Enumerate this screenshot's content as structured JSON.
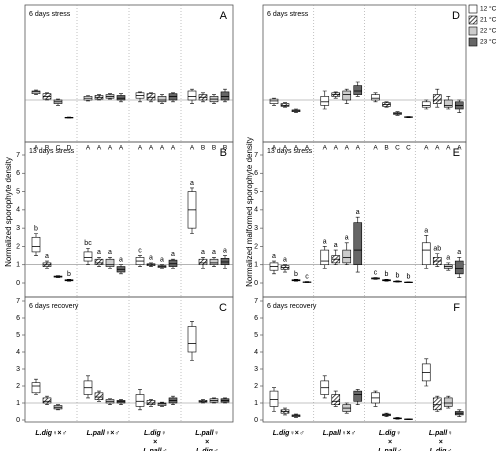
{
  "chart_data": [
    {
      "type": "box",
      "panel": "A",
      "annotation": "6 days stress",
      "ylim": [
        0,
        6
      ],
      "ref": 1,
      "series": [
        {
          "color": "#ffffff",
          "hatch": false,
          "values": [
            [
              1.3,
              1.35,
              1.45,
              1.5,
              1.55
            ],
            [
              0.95,
              1.0,
              1.1,
              1.2,
              1.25
            ],
            [
              0.9,
              1.1,
              1.25,
              1.4,
              1.45
            ],
            [
              0.8,
              1.0,
              1.2,
              1.5,
              1.6
            ]
          ]
        },
        {
          "color": "#ffffff",
          "hatch": true,
          "values": [
            [
              1.0,
              1.05,
              1.2,
              1.35,
              1.4
            ],
            [
              1.0,
              1.05,
              1.15,
              1.25,
              1.3
            ],
            [
              0.9,
              1.0,
              1.15,
              1.35,
              1.4
            ],
            [
              0.9,
              1.0,
              1.15,
              1.3,
              1.4
            ]
          ]
        },
        {
          "color": "#cccccc",
          "hatch": false,
          "values": [
            [
              0.7,
              0.8,
              0.9,
              1.0,
              1.05
            ],
            [
              1.05,
              1.1,
              1.2,
              1.3,
              1.35
            ],
            [
              0.8,
              0.9,
              1.0,
              1.2,
              1.3
            ],
            [
              0.8,
              0.9,
              1.05,
              1.2,
              1.3
            ]
          ]
        },
        {
          "color": "#666666",
          "hatch": false,
          "values": [
            [
              0,
              0,
              0.02,
              0.04,
              0.05
            ],
            [
              0.9,
              1.0,
              1.1,
              1.25,
              1.35
            ],
            [
              0.9,
              1.0,
              1.2,
              1.35,
              1.4
            ],
            [
              0.9,
              1.0,
              1.2,
              1.45,
              1.6
            ]
          ]
        }
      ],
      "strip_labels": [
        [
          "A",
          "B",
          "C",
          "D"
        ],
        [
          "A",
          "A",
          "A",
          "A"
        ],
        [
          "A",
          "A",
          "A",
          "A"
        ],
        [
          "A",
          "B",
          "B",
          "B"
        ]
      ]
    },
    {
      "type": "box",
      "panel": "B",
      "annotation": "13 days stress",
      "ylabel": "Normalized sporophyte density",
      "ylim": [
        0,
        7
      ],
      "yticks": [
        0,
        1,
        2,
        3,
        4,
        5,
        6,
        7
      ],
      "ref": 1,
      "series": [
        {
          "color": "#ffffff",
          "hatch": false,
          "values": [
            [
              1.5,
              1.7,
              2.0,
              2.5,
              2.7
            ],
            [
              1.0,
              1.2,
              1.4,
              1.7,
              1.9
            ],
            [
              0.9,
              1.0,
              1.2,
              1.4,
              1.5
            ],
            [
              2.7,
              3.0,
              4.0,
              5.0,
              5.2
            ]
          ]
        },
        {
          "color": "#ffffff",
          "hatch": true,
          "values": [
            [
              0.8,
              0.9,
              1.0,
              1.1,
              1.2
            ],
            [
              0.9,
              1.0,
              1.1,
              1.3,
              1.4
            ],
            [
              0.9,
              0.95,
              1.0,
              1.05,
              1.1
            ],
            [
              0.8,
              1.0,
              1.1,
              1.3,
              1.4
            ]
          ]
        },
        {
          "color": "#cccccc",
          "hatch": false,
          "values": [
            [
              0.3,
              0.32,
              0.35,
              0.38,
              0.4
            ],
            [
              0.8,
              0.9,
              1.0,
              1.3,
              1.4
            ],
            [
              0.8,
              0.85,
              0.9,
              0.95,
              1.0
            ],
            [
              0.9,
              1.0,
              1.1,
              1.3,
              1.4
            ]
          ]
        },
        {
          "color": "#666666",
          "hatch": false,
          "values": [
            [
              0.1,
              0.12,
              0.15,
              0.18,
              0.2
            ],
            [
              0.5,
              0.6,
              0.75,
              0.9,
              1.0
            ],
            [
              0.8,
              0.9,
              1.05,
              1.25,
              1.3
            ],
            [
              0.8,
              1.0,
              1.15,
              1.35,
              1.5
            ]
          ]
        }
      ],
      "labels": [
        [
          "b",
          "a",
          null,
          "b"
        ],
        [
          "bc",
          "a",
          "a",
          "a"
        ],
        [
          "c",
          "a",
          "a",
          "a"
        ],
        [
          "a",
          "a",
          "a",
          "a"
        ]
      ]
    },
    {
      "type": "box",
      "panel": "C",
      "annotation": "6 days recovery",
      "ylim": [
        0,
        7
      ],
      "yticks": [
        0,
        1,
        2,
        3,
        4,
        5,
        6,
        7
      ],
      "ref": 1,
      "categories": [
        [
          "L.dig♀×♂"
        ],
        [
          "L.pall♀×♂"
        ],
        [
          "L.dig♀",
          "×",
          "L.pall♂"
        ],
        [
          "L.pall♀",
          "×",
          "L.dig♂"
        ]
      ],
      "series": [
        {
          "color": "#ffffff",
          "hatch": false,
          "values": [
            [
              1.5,
              1.6,
              2.0,
              2.2,
              2.4
            ],
            [
              1.3,
              1.5,
              1.9,
              2.3,
              2.6
            ],
            [
              0.6,
              0.8,
              1.1,
              1.5,
              1.8
            ],
            [
              3.5,
              4.0,
              4.5,
              5.5,
              5.8
            ]
          ]
        },
        {
          "color": "#ffffff",
          "hatch": true,
          "values": [
            [
              0.9,
              1.0,
              1.1,
              1.3,
              1.4
            ],
            [
              1.1,
              1.2,
              1.35,
              1.6,
              1.7
            ],
            [
              0.8,
              0.9,
              1.0,
              1.15,
              1.2
            ],
            [
              1.0,
              1.05,
              1.1,
              1.15,
              1.2
            ]
          ]
        },
        {
          "color": "#cccccc",
          "hatch": false,
          "values": [
            [
              0.6,
              0.65,
              0.75,
              0.85,
              0.9
            ],
            [
              0.9,
              1.0,
              1.1,
              1.2,
              1.25
            ],
            [
              0.8,
              0.85,
              0.95,
              1.0,
              1.05
            ],
            [
              1.0,
              1.05,
              1.15,
              1.25,
              1.3
            ]
          ]
        },
        {
          "color": "#666666",
          "hatch": false,
          "values": [
            null,
            [
              0.9,
              1.0,
              1.1,
              1.15,
              1.2
            ],
            [
              0.9,
              1.0,
              1.15,
              1.3,
              1.4
            ],
            [
              1.0,
              1.05,
              1.15,
              1.25,
              1.3
            ]
          ]
        }
      ]
    },
    {
      "type": "box",
      "panel": "D",
      "annotation": "6 days stress",
      "ylim": [
        0,
        6
      ],
      "ref": 1,
      "series": [
        {
          "name": "12 °C",
          "color": "#ffffff",
          "hatch": false,
          "values": [
            [
              0.7,
              0.8,
              0.95,
              1.05,
              1.1
            ],
            [
              0.5,
              0.7,
              0.9,
              1.2,
              1.5
            ],
            [
              0.9,
              1.0,
              1.1,
              1.3,
              1.4
            ],
            [
              0.5,
              0.6,
              0.7,
              0.9,
              1.0
            ]
          ]
        },
        {
          "name": "21 °C",
          "color": "#ffffff",
          "hatch": true,
          "values": [
            [
              0.6,
              0.65,
              0.7,
              0.8,
              0.85
            ],
            [
              1.1,
              1.2,
              1.3,
              1.4,
              1.45
            ],
            [
              0.6,
              0.65,
              0.75,
              0.85,
              0.9
            ],
            [
              0.6,
              0.8,
              1.0,
              1.3,
              1.6
            ]
          ]
        },
        {
          "name": "22 °C",
          "color": "#cccccc",
          "hatch": false,
          "values": [
            [
              0.3,
              0.35,
              0.4,
              0.45,
              0.5
            ],
            [
              0.8,
              1.0,
              1.3,
              1.5,
              1.6
            ],
            [
              0.15,
              0.2,
              0.25,
              0.3,
              0.35
            ],
            [
              0.5,
              0.6,
              0.7,
              1.0,
              1.2
            ]
          ]
        },
        {
          "name": "23 °C",
          "color": "#666666",
          "hatch": false,
          "values": [
            null,
            [
              1.2,
              1.3,
              1.5,
              1.8,
              2.0
            ],
            [
              0.02,
              0.03,
              0.05,
              0.07,
              0.08
            ],
            [
              0.3,
              0.5,
              0.7,
              0.9,
              1.0
            ]
          ]
        }
      ],
      "strip_labels": [
        [
          "A",
          "A",
          "A",
          "A"
        ],
        [
          "A",
          "A",
          "A",
          "A"
        ],
        [
          "A",
          "B",
          "C",
          "C"
        ],
        [
          "A",
          "A",
          "A",
          "A"
        ]
      ]
    },
    {
      "type": "box",
      "panel": "E",
      "annotation": "13 days stress",
      "ylabel": "Normalized malformed sporophyte density",
      "ylim": [
        0,
        7
      ],
      "yticks": [
        0,
        1,
        2,
        3,
        4,
        5,
        6,
        7
      ],
      "ref": 1,
      "series": [
        {
          "color": "#ffffff",
          "hatch": false,
          "values": [
            [
              0.5,
              0.7,
              0.9,
              1.1,
              1.2
            ],
            [
              0.8,
              1.0,
              1.2,
              1.8,
              2.0
            ],
            [
              0.2,
              0.22,
              0.25,
              0.28,
              0.3
            ],
            [
              0.8,
              1.0,
              1.8,
              2.2,
              2.6
            ]
          ]
        },
        {
          "color": "#ffffff",
          "hatch": true,
          "values": [
            [
              0.6,
              0.75,
              0.85,
              0.95,
              1.0
            ],
            [
              1.0,
              1.1,
              1.3,
              1.5,
              1.8
            ],
            [
              0.1,
              0.12,
              0.15,
              0.18,
              0.2
            ],
            [
              0.9,
              1.0,
              1.2,
              1.4,
              1.6
            ]
          ]
        },
        {
          "color": "#cccccc",
          "hatch": false,
          "values": [
            [
              0.1,
              0.12,
              0.15,
              0.18,
              0.2
            ],
            [
              1.0,
              1.1,
              1.4,
              1.8,
              2.2
            ],
            [
              0.05,
              0.06,
              0.08,
              0.1,
              0.12
            ],
            [
              0.7,
              0.8,
              0.9,
              1.0,
              1.1
            ]
          ]
        },
        {
          "color": "#666666",
          "hatch": false,
          "values": [
            [
              0.02,
              0.03,
              0.05,
              0.06,
              0.08
            ],
            [
              0.6,
              1.0,
              1.8,
              3.3,
              3.6
            ],
            [
              0.02,
              0.03,
              0.04,
              0.05,
              0.06
            ],
            [
              0.3,
              0.5,
              0.8,
              1.2,
              1.4
            ]
          ]
        }
      ],
      "labels": [
        [
          "a",
          "a",
          "b",
          "c"
        ],
        [
          "a",
          "a",
          "a",
          "a"
        ],
        [
          "c",
          "b",
          "b",
          "b"
        ],
        [
          "a",
          "ab",
          "a",
          "a"
        ]
      ]
    },
    {
      "type": "box",
      "panel": "F",
      "annotation": "6 days recovery",
      "ylim": [
        0,
        7
      ],
      "yticks": [
        0,
        1,
        2,
        3,
        4,
        5,
        6,
        7
      ],
      "ref": 1,
      "categories": [
        [
          "L.dig♀×♂"
        ],
        [
          "L.pall♀×♂"
        ],
        [
          "L.dig♀",
          "×",
          "L.pall♂"
        ],
        [
          "L.pall♀",
          "×",
          "L.dig♂"
        ]
      ],
      "series": [
        {
          "color": "#ffffff",
          "hatch": false,
          "values": [
            [
              0.5,
              0.8,
              1.2,
              1.7,
              1.9
            ],
            [
              1.3,
              1.5,
              1.9,
              2.3,
              2.6
            ],
            [
              0.8,
              1.0,
              1.3,
              1.6,
              1.7
            ],
            [
              2.0,
              2.3,
              2.8,
              3.3,
              3.6
            ]
          ]
        },
        {
          "color": "#ffffff",
          "hatch": true,
          "values": [
            [
              0.3,
              0.4,
              0.5,
              0.6,
              0.7
            ],
            [
              0.8,
              0.9,
              1.1,
              1.5,
              1.7
            ],
            [
              0.2,
              0.25,
              0.3,
              0.35,
              0.4
            ],
            [
              0.5,
              0.6,
              0.9,
              1.3,
              1.4
            ]
          ]
        },
        {
          "color": "#cccccc",
          "hatch": false,
          "values": [
            [
              0.15,
              0.2,
              0.25,
              0.3,
              0.35
            ],
            [
              0.4,
              0.5,
              0.7,
              0.9,
              1.0
            ],
            [
              0.05,
              0.07,
              0.1,
              0.12,
              0.15
            ],
            [
              0.7,
              0.8,
              1.0,
              1.3,
              1.4
            ]
          ]
        },
        {
          "color": "#666666",
          "hatch": false,
          "values": [
            null,
            [
              0.9,
              1.1,
              1.5,
              1.7,
              1.8
            ],
            [
              0.02,
              0.03,
              0.05,
              0.06,
              0.07
            ],
            [
              0.2,
              0.3,
              0.4,
              0.5,
              0.6
            ]
          ]
        }
      ]
    }
  ]
}
